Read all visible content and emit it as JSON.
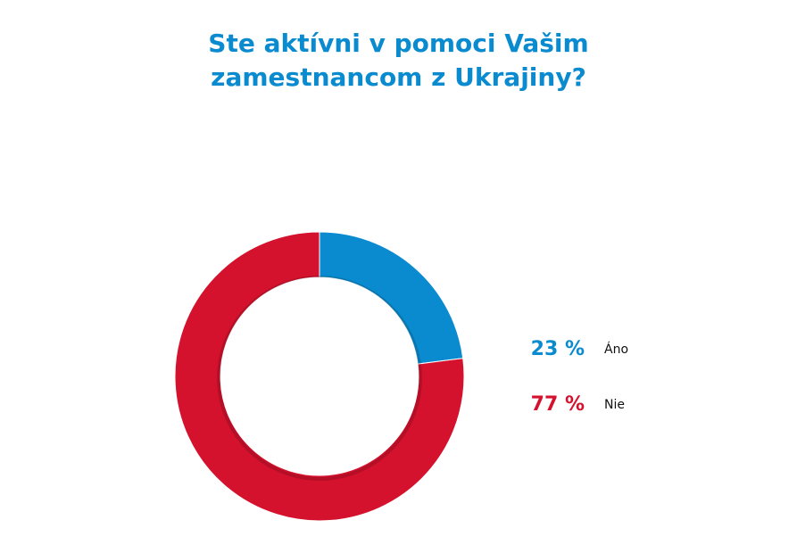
{
  "chart_data": {
    "type": "pie",
    "title_lines": [
      "Ste aktívni v pomoci Vašim",
      "zamestnancom z Ukrajiny?"
    ],
    "categories": [
      "Áno",
      "Nie"
    ],
    "values": [
      23,
      77
    ],
    "value_labels": [
      "23 %",
      "77 %"
    ],
    "colors": [
      "#0a8bd0",
      "#d5122e"
    ],
    "hole": "donut",
    "legend_position": "right"
  }
}
